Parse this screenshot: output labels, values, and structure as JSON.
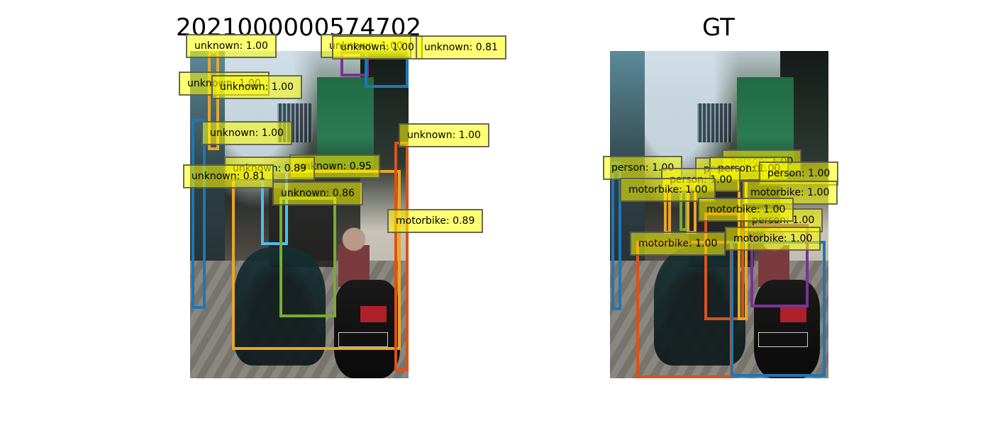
{
  "titles": {
    "left": "2021000000574702",
    "right": "GT"
  },
  "colors": {
    "blue": "#1f77b4",
    "orange": "#e8a628",
    "purple": "#7b3294",
    "red": "#d95319",
    "green": "#77ac30",
    "cyan": "#4dbeee"
  },
  "predictions": {
    "labels": [
      "unknown: 1.00",
      "unknown: 1.00",
      "unknown: 1.00",
      "unknown: 1.00",
      "unknown: 1.00",
      "unknown: 1.00",
      "unknown: 1.00",
      "unknown: 0.95",
      "unknown: 0.89",
      "unknown: 0.81",
      "unknown: 0.86",
      "motorbike: 0.89",
      "unknown: 0.81"
    ]
  },
  "ground_truth": {
    "labels": [
      "person: 1.00",
      "person: 1.00",
      "person: 1.00",
      "person: 1.00",
      "person: 1.00",
      "person: 1.00",
      "person: 1.00",
      "motorbike: 1.00",
      "motorbike: 1.00",
      "motorbike: 1.00",
      "motorbike: 1.00",
      "motorbike: 1.00"
    ]
  }
}
